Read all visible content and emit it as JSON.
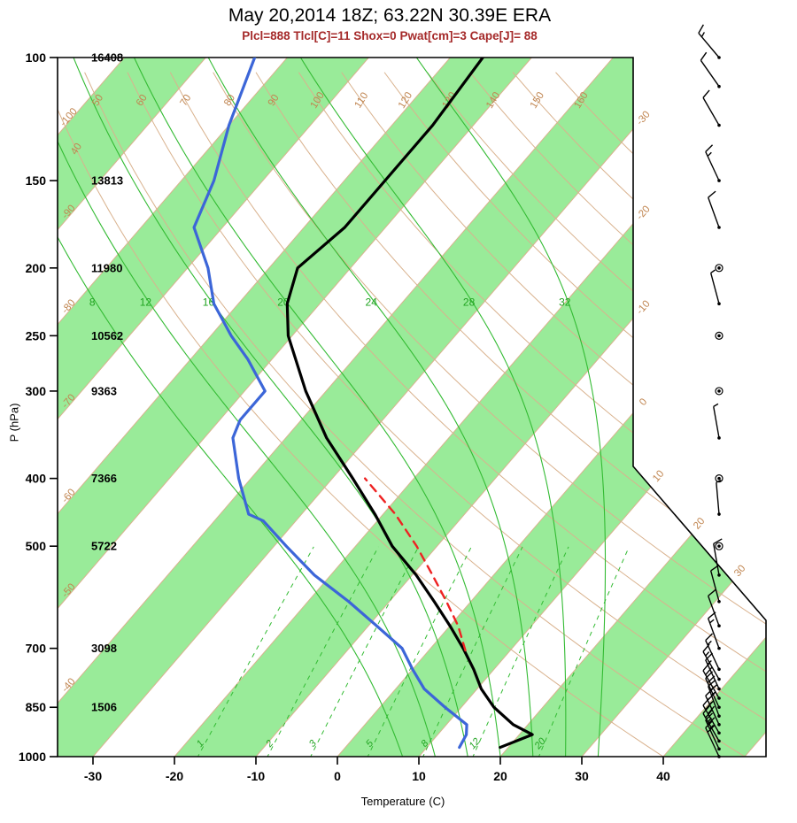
{
  "title": "May 20,2014 18Z; 63.22N 30.39E ERA",
  "subtitle": "Plcl=888 Tlcl[C]=11 Shox=0 Pwat[cm]=3 Cape[J]= 88",
  "axes": {
    "x_title": "Temperature (C)",
    "y_title": "P (hPa)",
    "pressure_ticks": [
      100,
      150,
      200,
      250,
      300,
      400,
      500,
      700,
      850,
      1000
    ],
    "temperature_ticks": [
      -30,
      -20,
      -10,
      0,
      10,
      20,
      30,
      40
    ],
    "height_labels": [
      {
        "pressure": 100,
        "height": "16408"
      },
      {
        "pressure": 150,
        "height": "13813"
      },
      {
        "pressure": 200,
        "height": "11980"
      },
      {
        "pressure": 250,
        "height": "10562"
      },
      {
        "pressure": 300,
        "height": "9363"
      },
      {
        "pressure": 400,
        "height": "7366"
      },
      {
        "pressure": 500,
        "height": "5722"
      },
      {
        "pressure": 700,
        "height": "3098"
      },
      {
        "pressure": 850,
        "height": "1506"
      }
    ]
  },
  "chart_data": {
    "type": "line",
    "variant": "skew-t-log-p",
    "title": "May 20,2014 18Z; 63.22N 30.39E ERA",
    "xlabel": "Temperature (C)",
    "ylabel": "P (hPa)",
    "x_range_c": [
      -30,
      40
    ],
    "pressure_range_hpa": [
      100,
      1000
    ],
    "log_pressure_axis": true,
    "series": [
      {
        "name": "temperature",
        "style": "solid",
        "width": 3.2,
        "points": [
          [
            970,
            19.0
          ],
          [
            930,
            21.6
          ],
          [
            900,
            18.2
          ],
          [
            850,
            14.0
          ],
          [
            800,
            10.5
          ],
          [
            750,
            7.5
          ],
          [
            700,
            4.0
          ],
          [
            650,
            0.0
          ],
          [
            600,
            -4.5
          ],
          [
            550,
            -9.5
          ],
          [
            500,
            -15.5
          ],
          [
            450,
            -21.0
          ],
          [
            400,
            -27.5
          ],
          [
            350,
            -35.0
          ],
          [
            300,
            -42.5
          ],
          [
            250,
            -50.5
          ],
          [
            225,
            -54.0
          ],
          [
            200,
            -56.5
          ],
          [
            175,
            -55.0
          ],
          [
            150,
            -55.0
          ],
          [
            125,
            -55.0
          ],
          [
            100,
            -56.0
          ]
        ]
      },
      {
        "name": "dewpoint",
        "style": "solid",
        "width": 3.2,
        "points": [
          [
            970,
            14.0
          ],
          [
            930,
            13.5
          ],
          [
            900,
            12.5
          ],
          [
            850,
            8.0
          ],
          [
            800,
            3.5
          ],
          [
            750,
            0.0
          ],
          [
            700,
            -3.5
          ],
          [
            650,
            -9.0
          ],
          [
            600,
            -15.0
          ],
          [
            550,
            -22.0
          ],
          [
            500,
            -28.5
          ],
          [
            460,
            -34.0
          ],
          [
            450,
            -36.5
          ],
          [
            400,
            -41.5
          ],
          [
            350,
            -46.5
          ],
          [
            330,
            -47.5
          ],
          [
            300,
            -47.5
          ],
          [
            270,
            -53.0
          ],
          [
            250,
            -57.5
          ],
          [
            225,
            -63.0
          ],
          [
            200,
            -67.5
          ],
          [
            175,
            -73.5
          ],
          [
            150,
            -76.0
          ],
          [
            125,
            -80.0
          ],
          [
            100,
            -84.0
          ]
        ]
      },
      {
        "name": "parcel",
        "style": "dashed",
        "width": 2.4,
        "points": [
          [
            705,
            4.5
          ],
          [
            650,
            1.0
          ],
          [
            600,
            -3.0
          ],
          [
            550,
            -7.5
          ],
          [
            500,
            -12.5
          ],
          [
            450,
            -18.5
          ],
          [
            400,
            -26.0
          ]
        ]
      }
    ],
    "isotherm_step_c": 10,
    "isotherm_labels": [
      -100,
      -90,
      -80,
      -70,
      -60,
      -50,
      -40,
      -30,
      -20,
      -10,
      0,
      10,
      20,
      30
    ],
    "dry_adiabat_labels_c": [
      40,
      50,
      60,
      70,
      80,
      90,
      100,
      110,
      120,
      130,
      140,
      150,
      160
    ],
    "moist_adiabat_labels_c": [
      8,
      12,
      16,
      20,
      24,
      28,
      32
    ],
    "mixing_ratio_labels_gkg": [
      1,
      2,
      3,
      5,
      8,
      12,
      20
    ],
    "wind_barbs": [
      [
        1000,
        335,
        20
      ],
      [
        975,
        335,
        25
      ],
      [
        950,
        330,
        25
      ],
      [
        925,
        330,
        30
      ],
      [
        900,
        335,
        25
      ],
      [
        875,
        340,
        25
      ],
      [
        850,
        335,
        20
      ],
      [
        825,
        330,
        20
      ],
      [
        800,
        335,
        15
      ],
      [
        775,
        330,
        15
      ],
      [
        750,
        335,
        15
      ],
      [
        700,
        340,
        15
      ],
      [
        650,
        340,
        10
      ],
      [
        600,
        345,
        10
      ],
      [
        550,
        350,
        10
      ],
      [
        500,
        0,
        0
      ],
      [
        450,
        355,
        5
      ],
      [
        400,
        0,
        0
      ],
      [
        350,
        350,
        5
      ],
      [
        300,
        0,
        0
      ],
      [
        250,
        0,
        0
      ],
      [
        225,
        345,
        5
      ],
      [
        200,
        0,
        0
      ],
      [
        175,
        340,
        10
      ],
      [
        150,
        335,
        15
      ],
      [
        125,
        330,
        10
      ],
      [
        110,
        325,
        10
      ],
      [
        100,
        320,
        15
      ]
    ]
  },
  "colors": {
    "band_green": "#99EB99",
    "adiabat_brown": "#D9B28E",
    "label_brown": "#C08550",
    "line_green": "#33BB33",
    "label_green": "#1FA31F",
    "temperature": "#000000",
    "dewpoint": "#3C66D8",
    "parcel": "#EE2222",
    "subtitle": "#A52A2A",
    "frame": "#000000"
  }
}
